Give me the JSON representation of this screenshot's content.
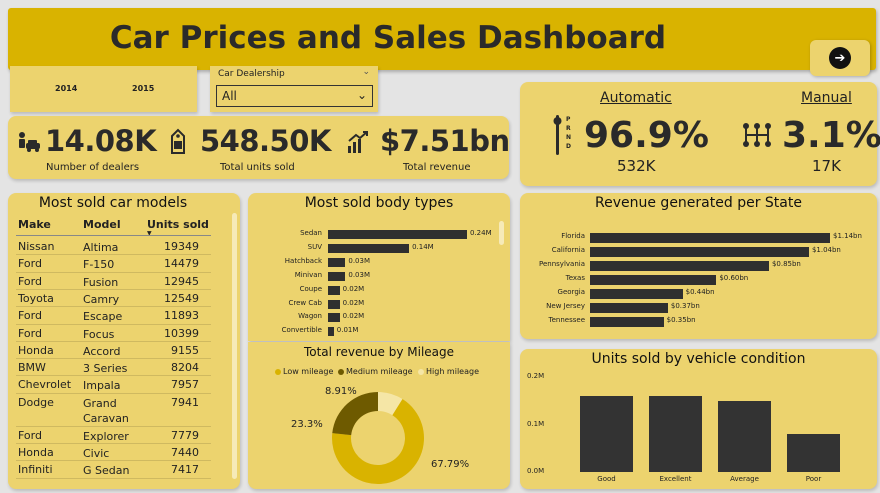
{
  "header": {
    "title": "Car Prices and Sales Dashboard"
  },
  "year_slicer": {
    "years": [
      "2014",
      "2015"
    ]
  },
  "dealer_slicer": {
    "label": "Car Dealership",
    "value": "All"
  },
  "kpis": {
    "dealers": {
      "value": "14.08K",
      "label": "Number of dealers"
    },
    "units": {
      "value": "548.50K",
      "label": "Total units sold"
    },
    "revenue": {
      "value": "$7.51bn",
      "label": "Total revenue"
    }
  },
  "transmission": {
    "automatic": {
      "label": "Automatic",
      "percent": "96.9%",
      "units": "532K"
    },
    "manual": {
      "label": "Manual",
      "percent": "3.1%",
      "units": "17K"
    },
    "gear_letters": [
      "P",
      "R",
      "N",
      "D"
    ]
  },
  "models_table": {
    "title": "Most sold car models",
    "headers": [
      "Make",
      "Model",
      "Units sold"
    ],
    "rows": [
      [
        "Nissan",
        "Altima",
        "19349"
      ],
      [
        "Ford",
        "F-150",
        "14479"
      ],
      [
        "Ford",
        "Fusion",
        "12945"
      ],
      [
        "Toyota",
        "Camry",
        "12549"
      ],
      [
        "Ford",
        "Escape",
        "11893"
      ],
      [
        "Ford",
        "Focus",
        "10399"
      ],
      [
        "Honda",
        "Accord",
        "9155"
      ],
      [
        "BMW",
        "3 Series",
        "8204"
      ],
      [
        "Chevrolet",
        "Impala",
        "7957"
      ],
      [
        "Dodge",
        "Grand Caravan",
        "7941"
      ],
      [
        "Ford",
        "Explorer",
        "7779"
      ],
      [
        "Honda",
        "Civic",
        "7440"
      ],
      [
        "Infiniti",
        "G Sedan",
        "7417"
      ]
    ]
  },
  "chart_data": [
    {
      "type": "bar",
      "orientation": "horizontal",
      "title": "Most sold body types",
      "categories": [
        "Sedan",
        "SUV",
        "Hatchback",
        "Minivan",
        "Coupe",
        "Crew Cab",
        "Wagon",
        "Convertible"
      ],
      "values": [
        0.24,
        0.14,
        0.03,
        0.03,
        0.02,
        0.02,
        0.02,
        0.01
      ],
      "labels": [
        "0.24M",
        "0.14M",
        "0.03M",
        "0.03M",
        "0.02M",
        "0.02M",
        "0.02M",
        "0.01M"
      ],
      "unit": "M"
    },
    {
      "type": "bar",
      "orientation": "horizontal",
      "title": "Revenue generated per State",
      "categories": [
        "Florida",
        "California",
        "Pennsylvania",
        "Texas",
        "Georgia",
        "New Jersey",
        "Tennessee"
      ],
      "values": [
        1.14,
        1.04,
        0.85,
        0.6,
        0.44,
        0.37,
        0.35
      ],
      "labels": [
        "$1.14bn",
        "$1.04bn",
        "$0.85bn",
        "$0.60bn",
        "$0.44bn",
        "$0.37bn",
        "$0.35bn"
      ],
      "unit": "bn"
    },
    {
      "type": "pie",
      "donut": true,
      "title": "Total revenue by Mileage",
      "categories": [
        "Low mileage",
        "Medium mileage",
        "High mileage"
      ],
      "values": [
        67.79,
        23.3,
        8.91
      ],
      "labels": [
        "67.79%",
        "23.3%",
        "8.91%"
      ],
      "colors": [
        "#d9b300",
        "#6e5a00",
        "#f5e6a6"
      ]
    },
    {
      "type": "bar",
      "orientation": "vertical",
      "title": "Units sold by vehicle condition",
      "categories": [
        "Good",
        "Excellent",
        "Average",
        "Poor"
      ],
      "values": [
        0.16,
        0.16,
        0.15,
        0.08
      ],
      "ylim": [
        0,
        0.2
      ],
      "yticks": [
        "0.0M",
        "0.1M",
        "0.2M"
      ]
    }
  ]
}
